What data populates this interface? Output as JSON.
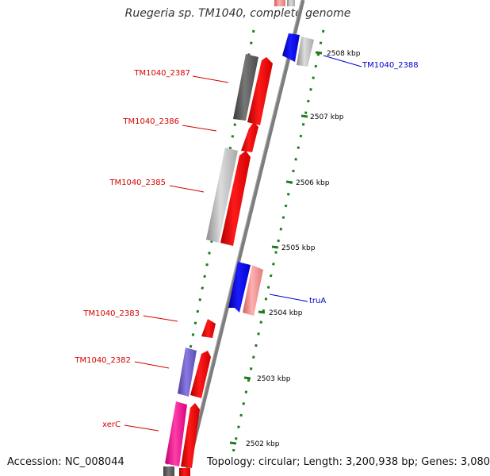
{
  "title": "Ruegeria sp. TM1040, complete genome",
  "footer": {
    "accession": "Accession: NC_008044",
    "topology": "Topology: circular; Length: 3,200,938 bp; Genes: 3,080"
  },
  "ticks": [
    {
      "label": "2508 kbp"
    },
    {
      "label": "2507 kbp"
    },
    {
      "label": "2506 kbp"
    },
    {
      "label": "2505 kbp"
    },
    {
      "label": "2504 kbp"
    },
    {
      "label": "2503 kbp"
    },
    {
      "label": "2502 kbp"
    }
  ],
  "gene_labels": [
    {
      "text": "TM1040_2387",
      "color": "#d40000",
      "side": "left"
    },
    {
      "text": "TM1040_2386",
      "color": "#d40000",
      "side": "left"
    },
    {
      "text": "TM1040_2385",
      "color": "#d40000",
      "side": "left"
    },
    {
      "text": "TM1040_2383",
      "color": "#d40000",
      "side": "left"
    },
    {
      "text": "TM1040_2382",
      "color": "#d40000",
      "side": "left"
    },
    {
      "text": "xerC",
      "color": "#d40000",
      "side": "left"
    },
    {
      "text": "TM1040_2388",
      "color": "#0000cc",
      "side": "right"
    },
    {
      "text": "truA",
      "color": "#0000cc",
      "side": "right"
    }
  ],
  "colors": {
    "backbone": "#808080",
    "tick": "#1e7d1e",
    "cds_forward": "#ff0000",
    "cds_reverse": "#0000ff",
    "gene_gray": "#b0b0b0",
    "dark_gray": "#555555",
    "purple": "#6a5acd",
    "magenta": "#ff1493",
    "pink": "#ff8080"
  }
}
